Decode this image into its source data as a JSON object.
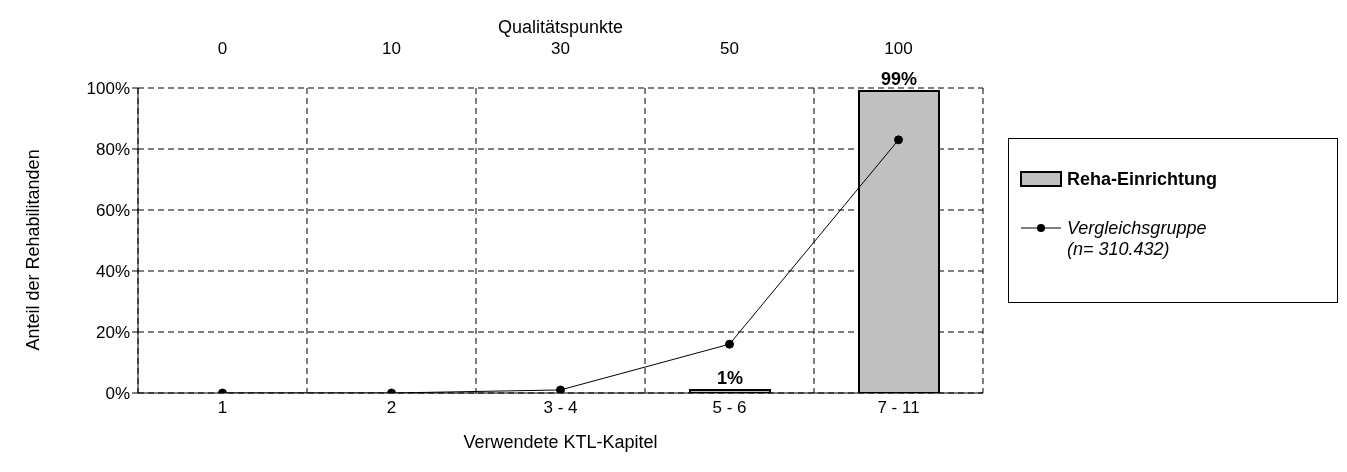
{
  "chart_data": {
    "type": "bar",
    "xlabel": "Verwendete KTL-Kapitel",
    "ylabel": "Anteil der Rehabilitanden",
    "x2label": "Qualitätspunkte",
    "categories": [
      "1",
      "2",
      "3 - 4",
      "5 - 6",
      "7 - 11"
    ],
    "annotations": [
      "0",
      "10",
      "30",
      "50",
      "100"
    ],
    "series": [
      {
        "name": "Reha-Einrichtung",
        "color": "#c0c0c0",
        "values": [
          0,
          0,
          0,
          1,
          99
        ],
        "value_labels": [
          null,
          null,
          null,
          "1%",
          "99%"
        ]
      },
      {
        "name": "Vergleichsgruppe (n= 310.432)",
        "type": "line",
        "color": "#000000",
        "values": [
          0,
          0,
          1,
          16,
          83
        ]
      }
    ],
    "ylim": [
      0,
      100
    ],
    "yticks": [
      {
        "value": 0,
        "label": "0%"
      },
      {
        "value": 20,
        "label": "20%"
      },
      {
        "value": 40,
        "label": "40%"
      },
      {
        "value": 60,
        "label": "60%"
      },
      {
        "value": 80,
        "label": "80%"
      },
      {
        "value": 100,
        "label": "100%"
      }
    ],
    "grid": true,
    "legend": "right",
    "marker": "circle",
    "line_style": "solid"
  }
}
